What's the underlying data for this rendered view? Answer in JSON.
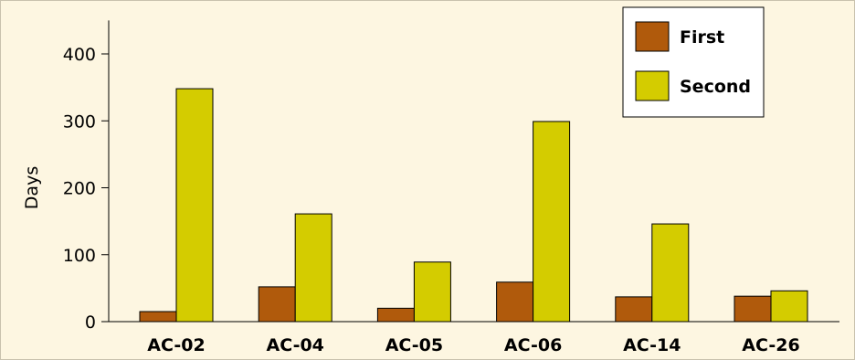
{
  "chart_data": {
    "type": "bar",
    "title": "",
    "xlabel": "",
    "ylabel": "Days",
    "ylim": [
      0,
      450
    ],
    "yticks": [
      0,
      100,
      200,
      300,
      400
    ],
    "grid": false,
    "legend_position": "top-right",
    "categories": [
      "AC-02",
      "AC-04",
      "AC-05",
      "AC-06",
      "AC-14",
      "AC-26"
    ],
    "series": [
      {
        "name": "First",
        "color": "#b05a0c",
        "values": [
          15,
          52,
          20,
          59,
          37,
          38
        ]
      },
      {
        "name": "Second",
        "color": "#d4cc00",
        "values": [
          348,
          161,
          89,
          299,
          146,
          46
        ]
      }
    ]
  }
}
